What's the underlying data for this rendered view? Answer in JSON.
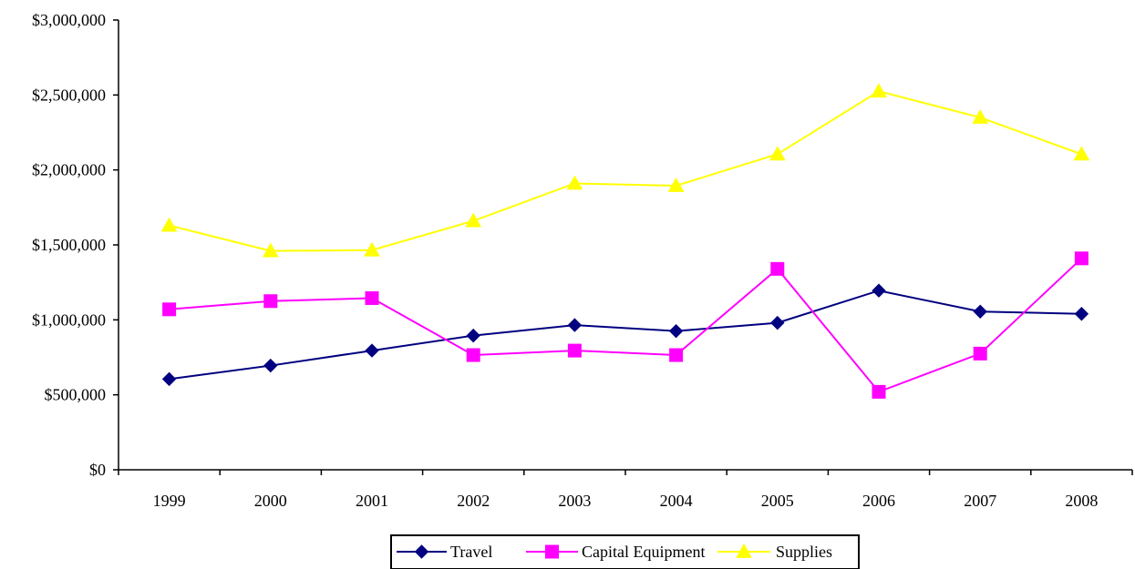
{
  "chart_data": {
    "type": "line",
    "title": "",
    "xlabel": "",
    "ylabel": "",
    "categories": [
      "1999",
      "2000",
      "2001",
      "2002",
      "2003",
      "2004",
      "2005",
      "2006",
      "2007",
      "2008"
    ],
    "ylim": [
      0,
      3000000
    ],
    "yticks": [
      0,
      500000,
      1000000,
      1500000,
      2000000,
      2500000,
      3000000
    ],
    "ytick_labels": [
      "$0",
      "$500,000",
      "$1,000,000",
      "$1,500,000",
      "$2,000,000",
      "$2,500,000",
      "$3,000,000"
    ],
    "grid": false,
    "legend_position": "bottom",
    "series": [
      {
        "name": "Travel",
        "color": "#000080",
        "marker": "diamond",
        "values": [
          605000,
          695000,
          795000,
          895000,
          965000,
          925000,
          980000,
          1195000,
          1055000,
          1040000
        ]
      },
      {
        "name": "Capital Equipment",
        "color": "#ff00ff",
        "marker": "square",
        "values": [
          1070000,
          1125000,
          1145000,
          765000,
          795000,
          765000,
          1340000,
          520000,
          775000,
          1410000
        ]
      },
      {
        "name": "Supplies",
        "color": "#ffff00",
        "marker": "triangle",
        "values": [
          1630000,
          1460000,
          1465000,
          1660000,
          1910000,
          1895000,
          2105000,
          2525000,
          2350000,
          2105000
        ]
      }
    ]
  }
}
